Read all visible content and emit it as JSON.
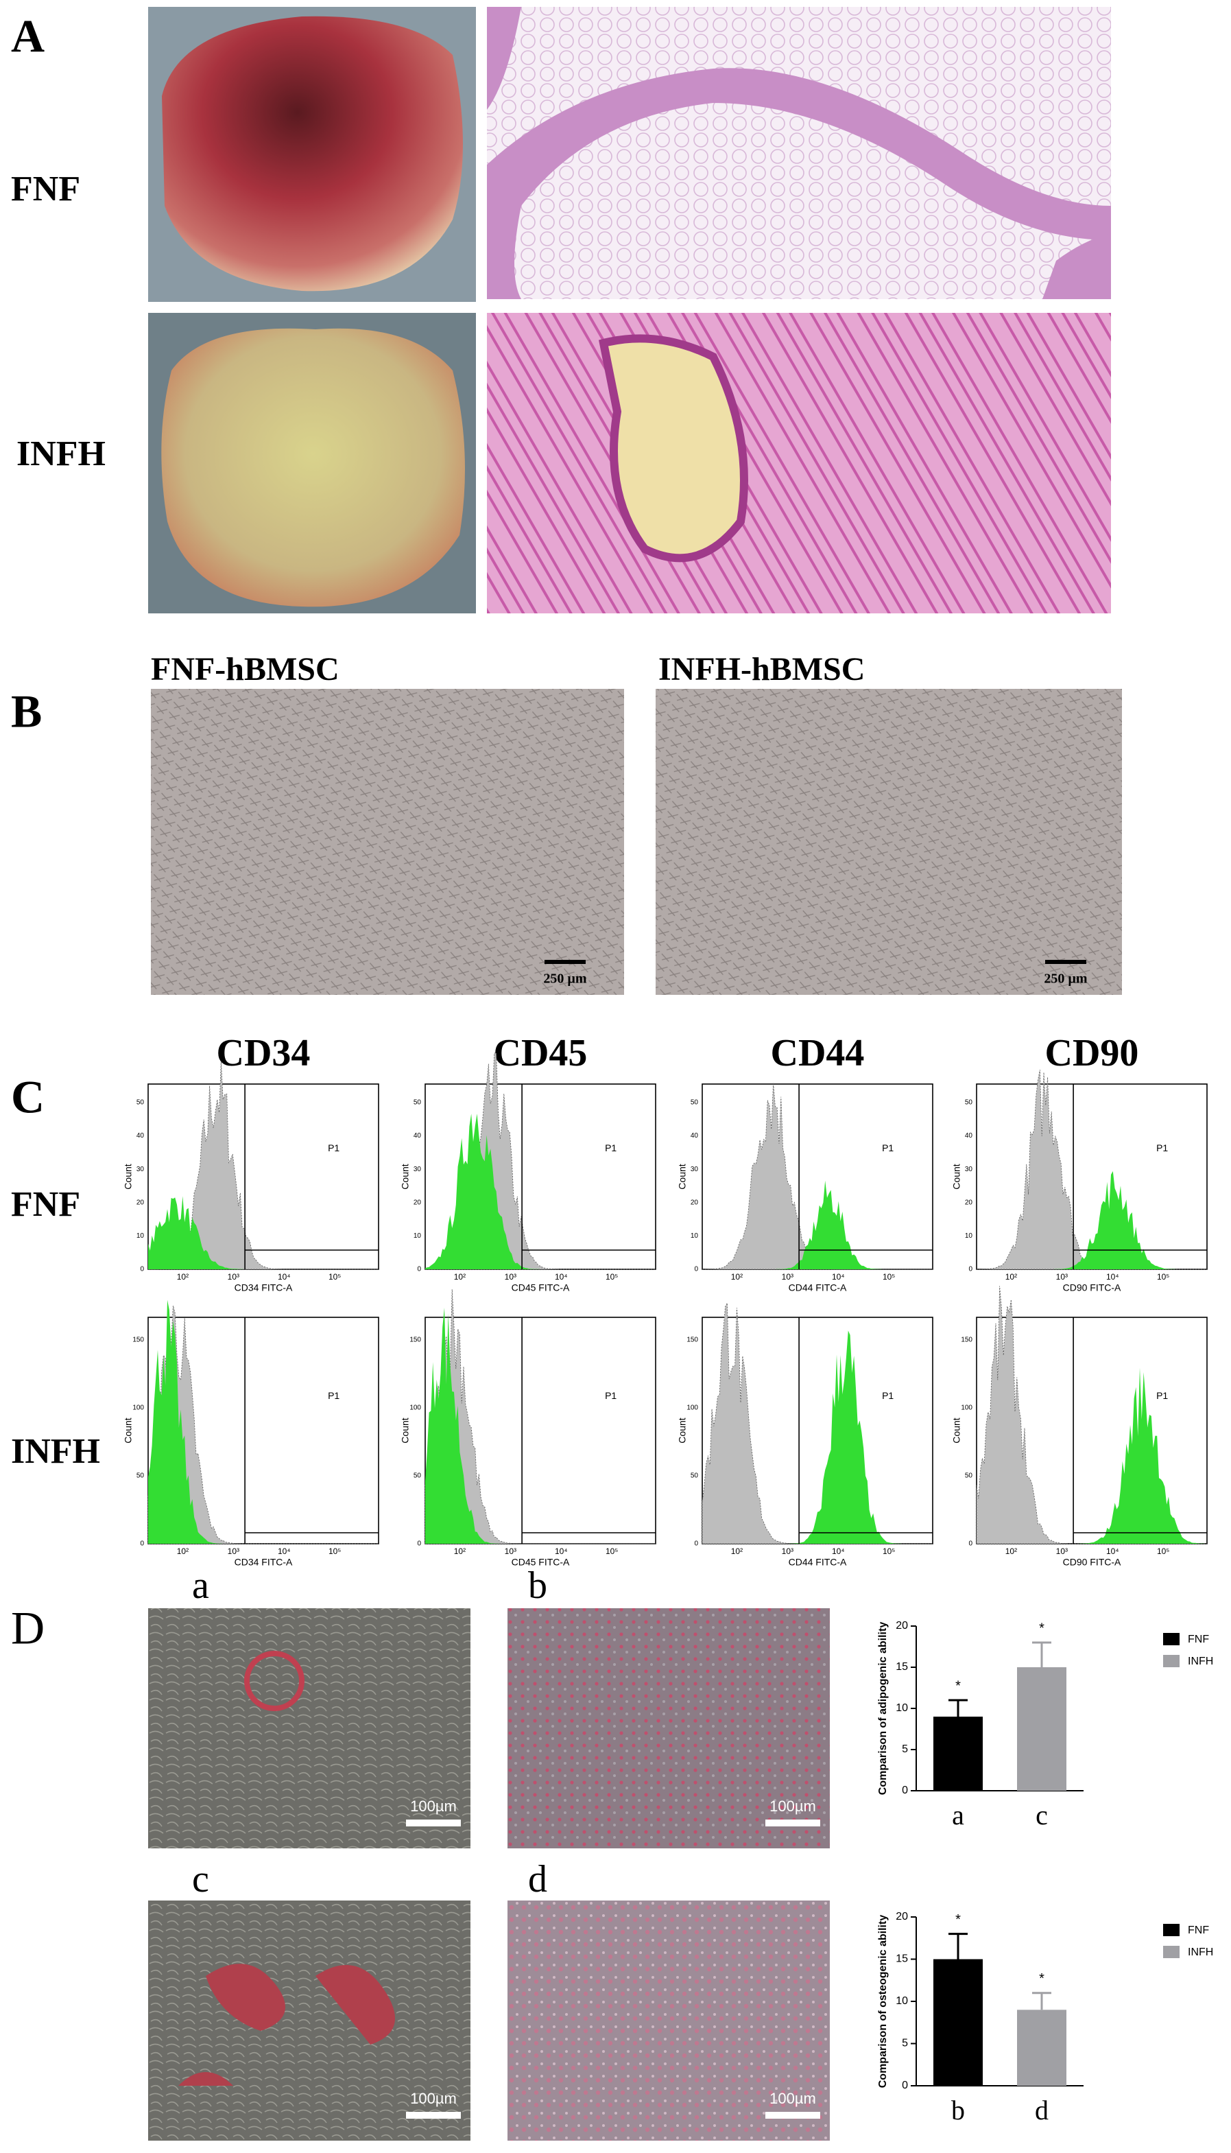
{
  "panels": {
    "A": {
      "label": "A",
      "rows": [
        "FNF",
        "INFH"
      ]
    },
    "B": {
      "label": "B",
      "titles": [
        "FNF-hBMSC",
        "INFH-hBMSC"
      ],
      "scale_bar": "250 µm"
    },
    "C": {
      "label": "C",
      "markers": [
        "CD34",
        "CD45",
        "CD44",
        "CD90"
      ],
      "rows": [
        "FNF",
        "INFH"
      ],
      "y_axis_label": "Count",
      "gate": "P1",
      "x_axis_labels": [
        "CD34 FITC-A",
        "CD45 FITC-A",
        "CD44 FITC-A",
        "CD90 FITC-A"
      ],
      "x_tick_labels": [
        "10²",
        "10³",
        "10⁴",
        "10⁵"
      ],
      "y_ticks_top": [
        0,
        10,
        20,
        30,
        40,
        50
      ],
      "y_ticks_bottom": [
        0,
        50,
        100,
        150
      ]
    },
    "D": {
      "label": "D",
      "image_labels": [
        "a",
        "b",
        "c",
        "d"
      ],
      "scale_bar": "100µm"
    }
  },
  "chart_data": [
    {
      "type": "bar",
      "ylabel": "Comparison of adipogenic ability",
      "categories": [
        "a",
        "c"
      ],
      "series": [
        {
          "name": "FNF",
          "color": "#000000",
          "values": [
            9,
            null
          ],
          "errors": [
            2,
            null
          ]
        },
        {
          "name": "INFH",
          "color": "#a0a0a4",
          "values": [
            null,
            15
          ],
          "errors": [
            null,
            3
          ]
        }
      ],
      "annotation": "*",
      "ylim": [
        0,
        20
      ],
      "yticks": [
        0,
        5,
        10,
        15,
        20
      ]
    },
    {
      "type": "bar",
      "ylabel": "Comparison of osteogenic ability",
      "categories": [
        "b",
        "d"
      ],
      "series": [
        {
          "name": "FNF",
          "color": "#000000",
          "values": [
            15,
            null
          ],
          "errors": [
            3,
            null
          ]
        },
        {
          "name": "INFH",
          "color": "#a0a0a4",
          "values": [
            null,
            9
          ],
          "errors": [
            null,
            2
          ]
        }
      ],
      "annotation": "*",
      "ylim": [
        0,
        20
      ],
      "yticks": [
        0,
        5,
        10,
        15,
        20
      ]
    }
  ]
}
